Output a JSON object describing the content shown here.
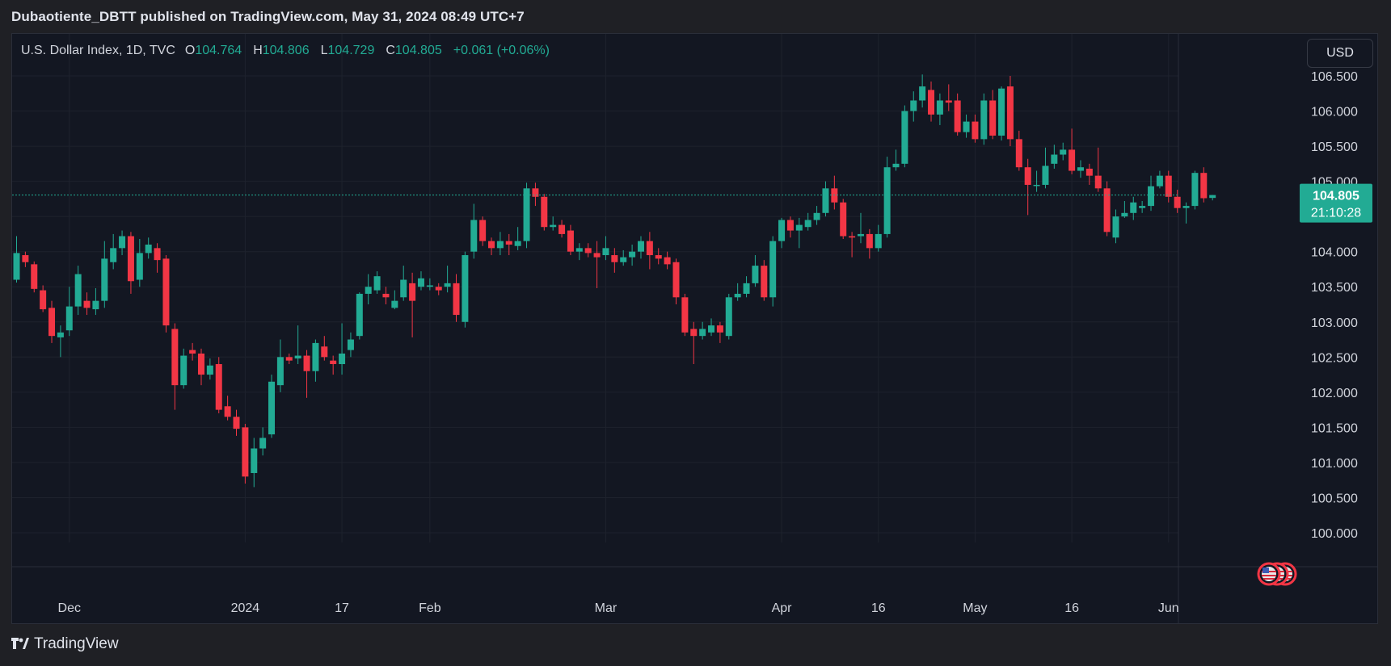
{
  "header": {
    "publisher_line": "Dubaotiente_DBTT published on TradingView.com, May 31, 2024 08:49 UTC+7"
  },
  "legend": {
    "symbol": "U.S. Dollar Index, 1D, TVC",
    "open_label": "O",
    "open": "104.764",
    "high_label": "H",
    "high": "104.806",
    "low_label": "L",
    "low": "104.729",
    "close_label": "C",
    "close": "104.805",
    "change": "+0.061 (+0.06%)"
  },
  "currency_button": "USD",
  "price_tag": {
    "price": "104.805",
    "countdown": "21:10:28"
  },
  "footer": {
    "brand": "TradingView"
  },
  "colors": {
    "up": "#22ab94",
    "down": "#f23645",
    "background": "#131722",
    "grid": "#1e222d",
    "text": "#d1d4dc"
  },
  "chart_data": {
    "type": "candlestick",
    "ylim": [
      100.0,
      106.5
    ],
    "y_ticks": [
      "106.500",
      "106.000",
      "105.500",
      "105.000",
      "104.500",
      "104.000",
      "103.500",
      "103.000",
      "102.500",
      "102.000",
      "101.500",
      "101.000",
      "100.500",
      "100.000"
    ],
    "x_ticks": [
      {
        "label": "Dec",
        "index": 6
      },
      {
        "label": "2024",
        "index": 26
      },
      {
        "label": "17",
        "index": 37
      },
      {
        "label": "Feb",
        "index": 47
      },
      {
        "label": "Mar",
        "index": 67
      },
      {
        "label": "Apr",
        "index": 87
      },
      {
        "label": "16",
        "index": 98
      },
      {
        "label": "May",
        "index": 109
      },
      {
        "label": "16",
        "index": 120
      },
      {
        "label": "Jun",
        "index": 131
      }
    ],
    "last_price": 104.805,
    "candles": [
      [
        103.6,
        103.98,
        104.22,
        103.56
      ],
      [
        103.95,
        103.85,
        104.0,
        103.78
      ],
      [
        103.82,
        103.47,
        103.86,
        103.42
      ],
      [
        103.45,
        103.18,
        103.52,
        103.14
      ],
      [
        103.2,
        102.8,
        103.3,
        102.7
      ],
      [
        102.78,
        102.85,
        102.95,
        102.5
      ],
      [
        102.88,
        103.22,
        103.5,
        102.8
      ],
      [
        103.22,
        103.68,
        103.8,
        103.1
      ],
      [
        103.3,
        103.2,
        103.42,
        103.1
      ],
      [
        103.18,
        103.3,
        103.48,
        103.1
      ],
      [
        103.3,
        103.9,
        104.15,
        103.2
      ],
      [
        103.85,
        104.05,
        104.25,
        103.75
      ],
      [
        104.05,
        104.22,
        104.3,
        103.95
      ],
      [
        104.22,
        103.58,
        104.28,
        103.4
      ],
      [
        103.6,
        103.98,
        104.18,
        103.5
      ],
      [
        103.98,
        104.1,
        104.2,
        103.9
      ],
      [
        104.05,
        103.88,
        104.12,
        103.7
      ],
      [
        103.9,
        102.95,
        103.95,
        102.85
      ],
      [
        102.9,
        102.1,
        102.98,
        101.75
      ],
      [
        102.1,
        102.52,
        102.62,
        102.05
      ],
      [
        102.6,
        102.55,
        102.7,
        102.45
      ],
      [
        102.55,
        102.25,
        102.62,
        102.1
      ],
      [
        102.25,
        102.38,
        102.48,
        102.18
      ],
      [
        102.4,
        101.75,
        102.5,
        101.7
      ],
      [
        101.8,
        101.65,
        101.95,
        101.6
      ],
      [
        101.65,
        101.48,
        101.75,
        101.38
      ],
      [
        101.5,
        100.8,
        101.55,
        100.7
      ],
      [
        100.85,
        101.2,
        101.35,
        100.65
      ],
      [
        101.2,
        101.35,
        101.5,
        101.1
      ],
      [
        101.4,
        102.15,
        102.25,
        101.35
      ],
      [
        102.1,
        102.5,
        102.75,
        102.0
      ],
      [
        102.5,
        102.45,
        102.55,
        102.4
      ],
      [
        102.48,
        102.52,
        102.95,
        102.4
      ],
      [
        102.52,
        102.3,
        102.6,
        101.92
      ],
      [
        102.3,
        102.7,
        102.75,
        102.15
      ],
      [
        102.65,
        102.5,
        102.8,
        102.45
      ],
      [
        102.45,
        102.4,
        102.52,
        102.25
      ],
      [
        102.4,
        102.55,
        102.98,
        102.25
      ],
      [
        102.6,
        102.75,
        102.85,
        102.5
      ],
      [
        102.8,
        103.4,
        103.42,
        102.75
      ],
      [
        103.4,
        103.5,
        103.68,
        103.25
      ],
      [
        103.45,
        103.65,
        103.72,
        103.4
      ],
      [
        103.4,
        103.35,
        103.5,
        103.25
      ],
      [
        103.2,
        103.3,
        103.45,
        103.18
      ],
      [
        103.35,
        103.6,
        103.8,
        103.3
      ],
      [
        103.55,
        103.3,
        103.7,
        102.78
      ],
      [
        103.5,
        103.62,
        103.72,
        103.45
      ],
      [
        103.5,
        103.52,
        103.62,
        103.45
      ],
      [
        103.5,
        103.45,
        103.55,
        103.38
      ],
      [
        103.5,
        103.55,
        103.8,
        103.42
      ],
      [
        103.55,
        103.1,
        103.68,
        103.0
      ],
      [
        103.0,
        103.95,
        104.0,
        102.92
      ],
      [
        104.0,
        104.45,
        104.68,
        103.9
      ],
      [
        104.45,
        104.15,
        104.5,
        104.08
      ],
      [
        104.15,
        104.05,
        104.2,
        103.95
      ],
      [
        104.05,
        104.15,
        104.28,
        103.95
      ],
      [
        104.15,
        104.1,
        104.25,
        103.95
      ],
      [
        104.08,
        104.15,
        104.35,
        104.02
      ],
      [
        104.15,
        104.9,
        104.98,
        104.05
      ],
      [
        104.9,
        104.78,
        104.98,
        104.65
      ],
      [
        104.78,
        104.35,
        104.82,
        104.3
      ],
      [
        104.35,
        104.38,
        104.5,
        104.3
      ],
      [
        104.38,
        104.25,
        104.45,
        104.2
      ],
      [
        104.3,
        104.0,
        104.38,
        103.95
      ],
      [
        104.0,
        104.05,
        104.12,
        103.88
      ],
      [
        104.05,
        103.98,
        104.12,
        103.92
      ],
      [
        103.98,
        103.92,
        104.15,
        103.48
      ],
      [
        103.95,
        104.05,
        104.22,
        103.88
      ],
      [
        103.95,
        103.85,
        104.05,
        103.7
      ],
      [
        103.85,
        103.92,
        104.02,
        103.8
      ],
      [
        103.92,
        104.0,
        104.1,
        103.8
      ],
      [
        104.0,
        104.15,
        104.22,
        103.9
      ],
      [
        104.15,
        103.95,
        104.28,
        103.75
      ],
      [
        103.95,
        103.9,
        104.05,
        103.82
      ],
      [
        103.92,
        103.82,
        104.0,
        103.75
      ],
      [
        103.85,
        103.35,
        103.9,
        103.25
      ],
      [
        103.35,
        102.85,
        103.4,
        102.8
      ],
      [
        102.9,
        102.8,
        103.0,
        102.4
      ],
      [
        102.8,
        102.9,
        103.0,
        102.75
      ],
      [
        102.85,
        102.95,
        103.05,
        102.8
      ],
      [
        102.95,
        102.85,
        103.0,
        102.7
      ],
      [
        102.8,
        103.35,
        103.4,
        102.75
      ],
      [
        103.35,
        103.4,
        103.55,
        103.3
      ],
      [
        103.4,
        103.55,
        103.65,
        103.35
      ],
      [
        103.55,
        103.8,
        103.95,
        103.5
      ],
      [
        103.8,
        103.35,
        103.88,
        103.3
      ],
      [
        103.35,
        104.15,
        104.22,
        103.22
      ],
      [
        104.15,
        104.45,
        104.48,
        104.05
      ],
      [
        104.45,
        104.3,
        104.5,
        104.2
      ],
      [
        104.3,
        104.38,
        104.48,
        104.05
      ],
      [
        104.35,
        104.45,
        104.55,
        104.3
      ],
      [
        104.45,
        104.55,
        104.65,
        104.38
      ],
      [
        104.55,
        104.9,
        105.0,
        104.5
      ],
      [
        104.9,
        104.7,
        105.08,
        104.6
      ],
      [
        104.7,
        104.22,
        104.75,
        104.18
      ],
      [
        104.22,
        104.2,
        104.28,
        103.92
      ],
      [
        104.22,
        104.25,
        104.55,
        104.12
      ],
      [
        104.25,
        104.05,
        104.32,
        103.9
      ],
      [
        104.05,
        104.25,
        104.38,
        104.0
      ],
      [
        104.25,
        105.2,
        105.35,
        104.2
      ],
      [
        105.2,
        105.25,
        105.45,
        105.15
      ],
      [
        105.25,
        106.0,
        106.08,
        105.2
      ],
      [
        106.0,
        106.15,
        106.28,
        105.85
      ],
      [
        106.15,
        106.35,
        106.52,
        106.05
      ],
      [
        106.3,
        105.95,
        106.42,
        105.85
      ],
      [
        105.95,
        106.15,
        106.25,
        105.8
      ],
      [
        106.15,
        106.12,
        106.38,
        106.0
      ],
      [
        106.15,
        105.7,
        106.25,
        105.65
      ],
      [
        105.7,
        105.85,
        105.95,
        105.62
      ],
      [
        105.85,
        105.6,
        105.95,
        105.55
      ],
      [
        105.6,
        106.15,
        106.25,
        105.52
      ],
      [
        106.15,
        105.65,
        106.3,
        105.6
      ],
      [
        105.65,
        106.32,
        106.35,
        105.58
      ],
      [
        106.35,
        105.6,
        106.5,
        105.5
      ],
      [
        105.6,
        105.2,
        105.72,
        105.15
      ],
      [
        105.2,
        104.95,
        105.32,
        104.52
      ],
      [
        104.95,
        104.95,
        105.15,
        104.85
      ],
      [
        104.95,
        105.22,
        105.48,
        104.9
      ],
      [
        105.25,
        105.38,
        105.52,
        105.18
      ],
      [
        105.38,
        105.45,
        105.55,
        105.3
      ],
      [
        105.45,
        105.15,
        105.75,
        105.1
      ],
      [
        105.15,
        105.2,
        105.3,
        105.05
      ],
      [
        105.18,
        105.08,
        105.25,
        104.95
      ],
      [
        105.08,
        104.9,
        105.48,
        104.85
      ],
      [
        104.9,
        104.28,
        105.0,
        104.22
      ],
      [
        104.2,
        104.5,
        104.6,
        104.12
      ],
      [
        104.5,
        104.55,
        104.72,
        104.48
      ],
      [
        104.55,
        104.7,
        104.78,
        104.45
      ],
      [
        104.62,
        104.65,
        104.72,
        104.55
      ],
      [
        104.65,
        104.93,
        105.08,
        104.58
      ],
      [
        104.93,
        105.08,
        105.15,
        104.9
      ],
      [
        105.08,
        104.78,
        105.15,
        104.7
      ],
      [
        104.78,
        104.62,
        104.88,
        104.55
      ],
      [
        104.62,
        104.65,
        104.7,
        104.4
      ],
      [
        104.65,
        105.12,
        105.15,
        104.6
      ],
      [
        105.12,
        104.76,
        105.2,
        104.7
      ],
      [
        104.764,
        104.805,
        104.806,
        104.729
      ]
    ]
  }
}
